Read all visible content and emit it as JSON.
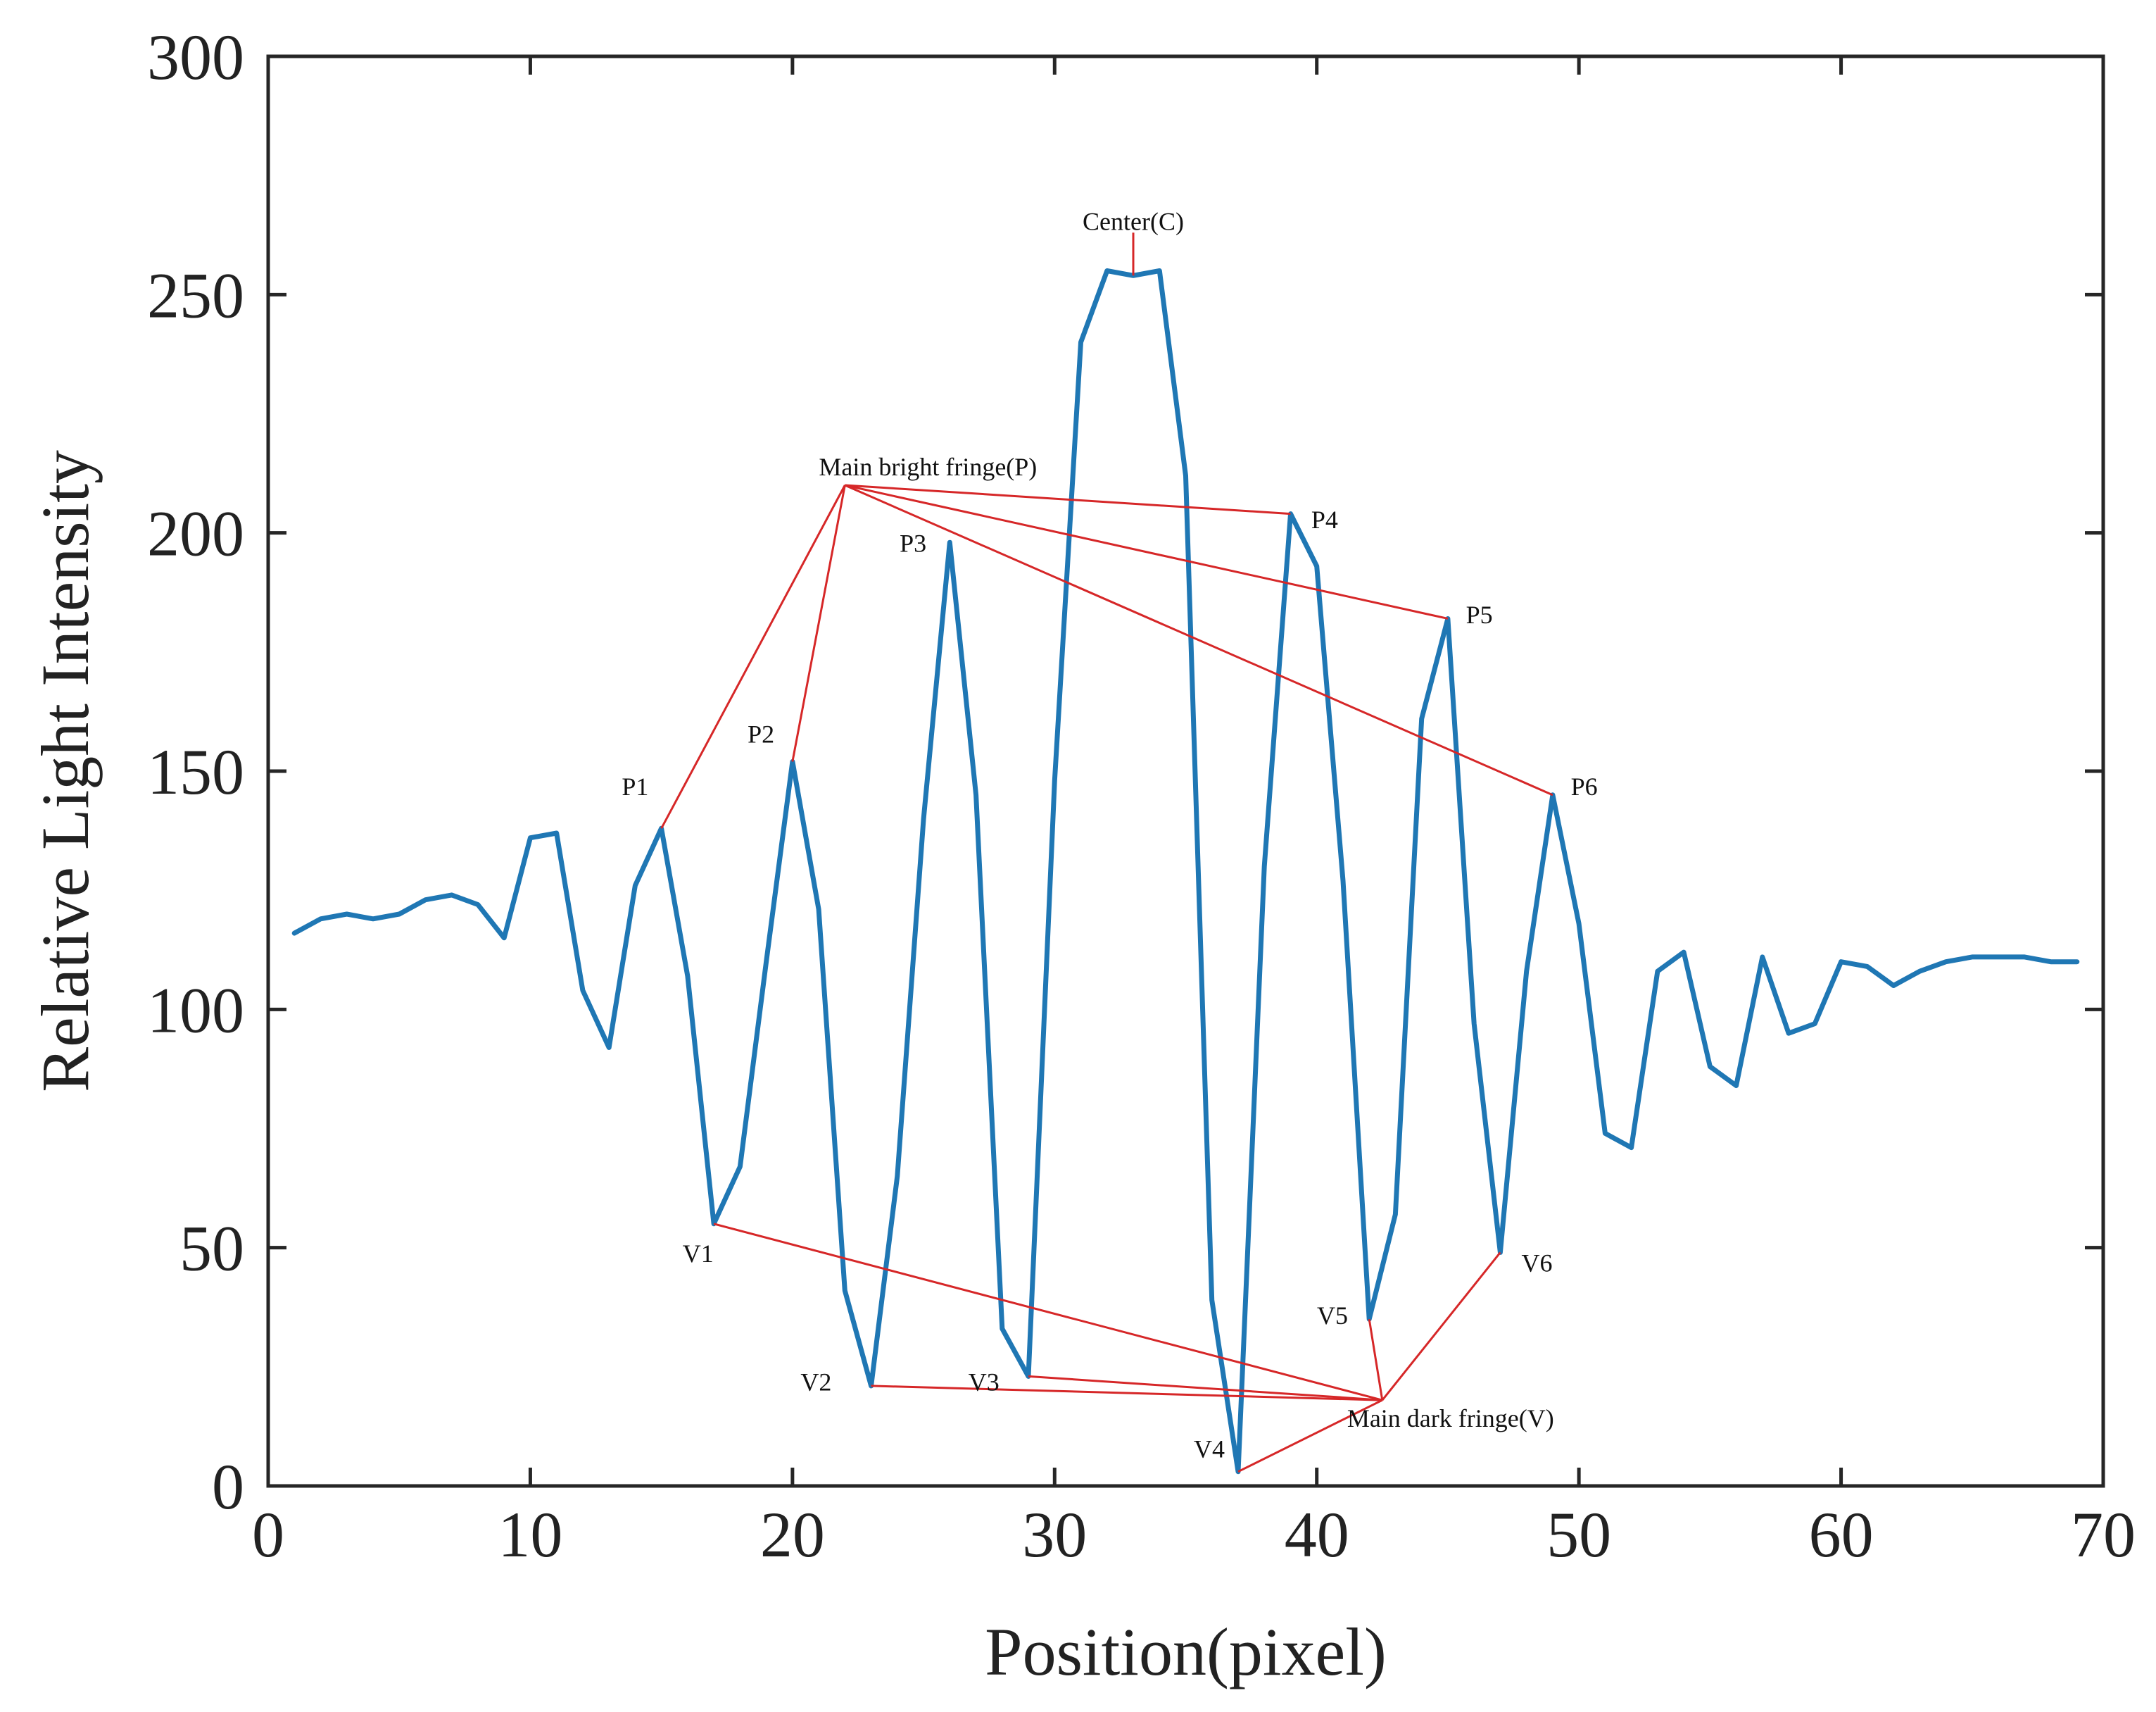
{
  "chart_data": {
    "type": "line",
    "title": "",
    "xlabel": "Position(pixel)",
    "ylabel": "Relative Light Intensity",
    "xlim": [
      0,
      70
    ],
    "ylim": [
      0,
      300
    ],
    "xticks": [
      0,
      10,
      20,
      30,
      40,
      50,
      60,
      70
    ],
    "yticks": [
      0,
      50,
      100,
      150,
      200,
      250,
      300
    ],
    "xtick_labels": [
      "0",
      "10",
      "20",
      "30",
      "40",
      "50",
      "60",
      "70"
    ],
    "ytick_labels": [
      "0",
      "50",
      "100",
      "150",
      "200",
      "250",
      "300"
    ],
    "grid": false,
    "series": [
      {
        "name": "intensity",
        "color": "#1f77b4",
        "x": [
          1,
          2,
          3,
          4,
          5,
          6,
          7,
          8,
          9,
          10,
          11,
          12,
          13,
          14,
          15,
          16,
          17,
          18,
          19,
          20,
          21,
          22,
          23,
          24,
          25,
          26,
          27,
          28,
          29,
          30,
          31,
          32,
          33,
          34,
          35,
          36,
          37,
          38,
          39,
          40,
          41,
          42,
          43,
          44,
          45,
          46,
          47,
          48,
          49,
          50,
          51,
          52,
          53,
          54,
          55,
          56,
          57,
          58,
          59,
          60,
          61,
          62,
          63,
          64,
          65,
          66,
          67,
          68,
          69
        ],
        "values": [
          116,
          119,
          120,
          119,
          120,
          123,
          124,
          122,
          115,
          136,
          137,
          104,
          92,
          126,
          138,
          107,
          55,
          67,
          110,
          152,
          121,
          41,
          21,
          65,
          140,
          198,
          145,
          33,
          23,
          148,
          240,
          255,
          254,
          255,
          212,
          39,
          3,
          130,
          204,
          193,
          127,
          35,
          57,
          161,
          182,
          97,
          49,
          108,
          145,
          118,
          74,
          71,
          108,
          112,
          88,
          84,
          111,
          95,
          97,
          110,
          109,
          105,
          108,
          110,
          111,
          111,
          111,
          110,
          110
        ]
      }
    ],
    "annotation_color": "#d62728",
    "annotations": {
      "center": {
        "label": "Center(C)",
        "hub": [
          33,
          263
        ],
        "targets": [
          [
            33,
            254
          ]
        ]
      },
      "bright": {
        "label": "Main bright fringe(P)",
        "hub": [
          22,
          210
        ],
        "targets": [
          [
            15,
            138
          ],
          [
            20,
            152
          ],
          [
            39,
            204
          ],
          [
            45,
            182
          ],
          [
            49,
            145
          ]
        ]
      },
      "dark": {
        "label": "Main dark fringe(V)",
        "hub": [
          42.5,
          18
        ],
        "targets": [
          [
            17,
            55
          ],
          [
            23,
            21
          ],
          [
            29,
            23
          ],
          [
            37,
            3
          ],
          [
            42,
            35
          ],
          [
            47,
            49
          ]
        ]
      },
      "point_labels": [
        {
          "text": "P1",
          "x": 14.0,
          "y": 145
        },
        {
          "text": "P2",
          "x": 18.8,
          "y": 156
        },
        {
          "text": "P3",
          "x": 24.6,
          "y": 196
        },
        {
          "text": "P4",
          "x": 40.3,
          "y": 201
        },
        {
          "text": "P5",
          "x": 46.2,
          "y": 181
        },
        {
          "text": "P6",
          "x": 50.2,
          "y": 145
        },
        {
          "text": "V1",
          "x": 16.4,
          "y": 47
        },
        {
          "text": "V2",
          "x": 20.9,
          "y": 20
        },
        {
          "text": "V3",
          "x": 27.3,
          "y": 20
        },
        {
          "text": "V4",
          "x": 35.9,
          "y": 6
        },
        {
          "text": "V5",
          "x": 40.6,
          "y": 34
        },
        {
          "text": "V6",
          "x": 48.4,
          "y": 45
        }
      ]
    }
  }
}
